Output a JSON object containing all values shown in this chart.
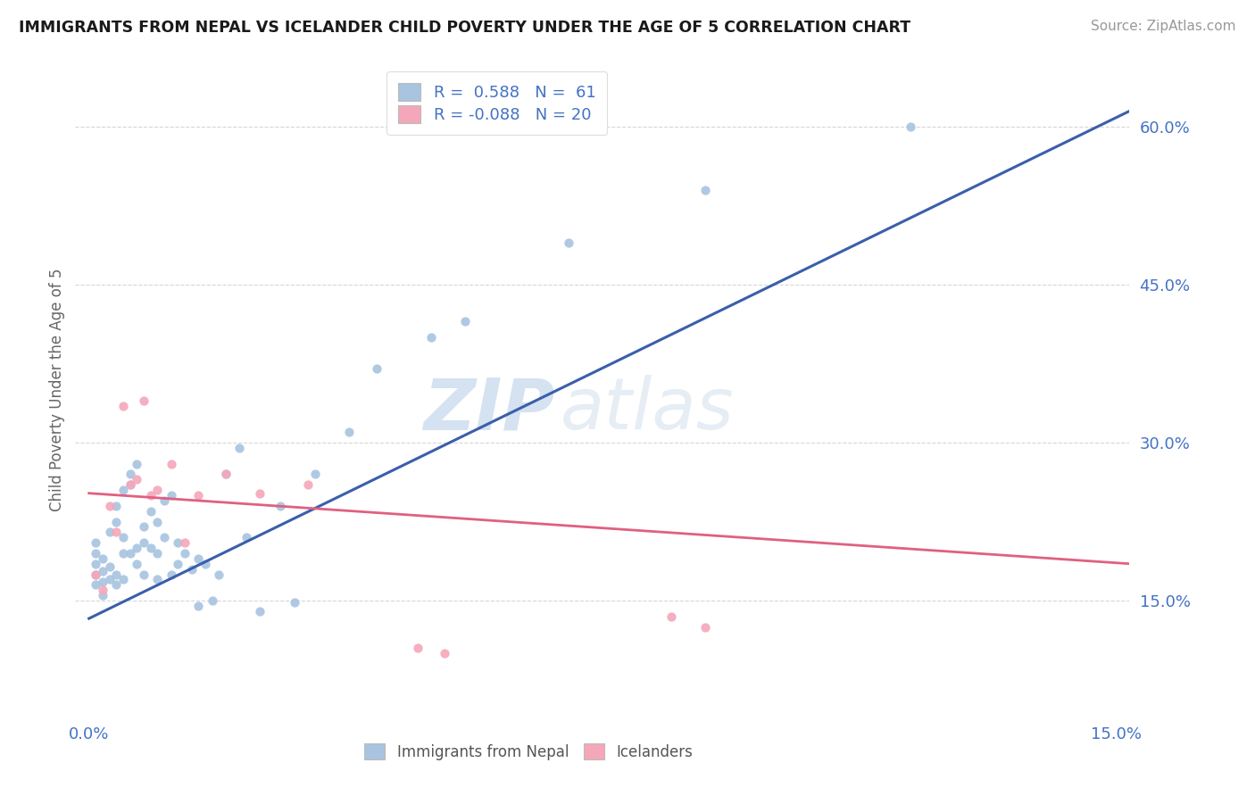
{
  "title": "IMMIGRANTS FROM NEPAL VS ICELANDER CHILD POVERTY UNDER THE AGE OF 5 CORRELATION CHART",
  "source": "Source: ZipAtlas.com",
  "ylabel": "Child Poverty Under the Age of 5",
  "xlim": [
    -0.002,
    0.152
  ],
  "ylim": [
    0.04,
    0.66
  ],
  "nepal_color": "#a8c4e0",
  "iceland_color": "#f4a7b9",
  "nepal_line_color": "#3a5faa",
  "iceland_line_color": "#e06080",
  "nepal_R": 0.588,
  "nepal_N": 61,
  "iceland_R": -0.088,
  "iceland_N": 20,
  "nepal_line_x0": 0.0,
  "nepal_line_y0": 0.133,
  "nepal_line_x1": 0.152,
  "nepal_line_y1": 0.615,
  "iceland_line_x0": 0.0,
  "iceland_line_y0": 0.252,
  "iceland_line_x1": 0.152,
  "iceland_line_y1": 0.185,
  "nepal_scatter_x": [
    0.001,
    0.001,
    0.001,
    0.001,
    0.001,
    0.002,
    0.002,
    0.002,
    0.002,
    0.003,
    0.003,
    0.003,
    0.004,
    0.004,
    0.004,
    0.004,
    0.005,
    0.005,
    0.005,
    0.005,
    0.006,
    0.006,
    0.006,
    0.007,
    0.007,
    0.007,
    0.008,
    0.008,
    0.008,
    0.009,
    0.009,
    0.01,
    0.01,
    0.01,
    0.011,
    0.011,
    0.012,
    0.012,
    0.013,
    0.013,
    0.014,
    0.015,
    0.016,
    0.016,
    0.017,
    0.018,
    0.019,
    0.02,
    0.022,
    0.023,
    0.025,
    0.028,
    0.03,
    0.033,
    0.038,
    0.042,
    0.05,
    0.055,
    0.07,
    0.09,
    0.12
  ],
  "nepal_scatter_y": [
    0.165,
    0.175,
    0.185,
    0.195,
    0.205,
    0.155,
    0.168,
    0.178,
    0.19,
    0.17,
    0.182,
    0.215,
    0.165,
    0.175,
    0.225,
    0.24,
    0.17,
    0.195,
    0.21,
    0.255,
    0.26,
    0.195,
    0.27,
    0.185,
    0.2,
    0.28,
    0.175,
    0.205,
    0.22,
    0.2,
    0.235,
    0.17,
    0.195,
    0.225,
    0.21,
    0.245,
    0.175,
    0.25,
    0.185,
    0.205,
    0.195,
    0.18,
    0.145,
    0.19,
    0.185,
    0.15,
    0.175,
    0.27,
    0.295,
    0.21,
    0.14,
    0.24,
    0.148,
    0.27,
    0.31,
    0.37,
    0.4,
    0.415,
    0.49,
    0.54,
    0.6
  ],
  "iceland_scatter_x": [
    0.001,
    0.002,
    0.003,
    0.004,
    0.005,
    0.006,
    0.007,
    0.008,
    0.009,
    0.01,
    0.012,
    0.014,
    0.016,
    0.02,
    0.025,
    0.032,
    0.048,
    0.052,
    0.085,
    0.09
  ],
  "iceland_scatter_y": [
    0.175,
    0.16,
    0.24,
    0.215,
    0.335,
    0.26,
    0.265,
    0.34,
    0.25,
    0.255,
    0.28,
    0.205,
    0.25,
    0.27,
    0.252,
    0.26,
    0.105,
    0.1,
    0.135,
    0.125
  ],
  "watermark_zip": "ZIP",
  "watermark_atlas": "atlas",
  "background_color": "#ffffff",
  "grid_color": "#cccccc"
}
